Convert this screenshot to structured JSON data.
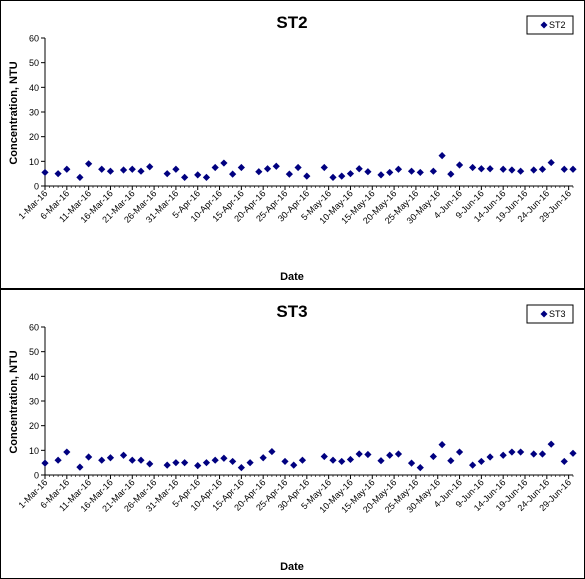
{
  "chart_data": [
    {
      "type": "scatter",
      "title": "ST2",
      "xlabel": "Date",
      "ylabel": "Concentration, NTU",
      "ylim": [
        0,
        60
      ],
      "yticks": [
        "0",
        "10",
        "20",
        "30",
        "40",
        "50",
        "60"
      ],
      "xlim": [
        "2016-03-01",
        "2016-06-30"
      ],
      "xtick_labels": [
        "1-Mar-16",
        "6-Mar-16",
        "11-Mar-16",
        "16-Mar-16",
        "21-Mar-16",
        "26-Mar-16",
        "31-Mar-16",
        "5-Apr-16",
        "10-Apr-16",
        "15-Apr-16",
        "20-Apr-16",
        "25-Apr-16",
        "30-Apr-16",
        "5-May-16",
        "10-May-16",
        "15-May-16",
        "20-May-16",
        "25-May-16",
        "30-May-16",
        "4-Jun-16",
        "9-Jun-16",
        "14-Jun-16",
        "19-Jun-16",
        "24-Jun-16",
        "29-Jun-16"
      ],
      "legend": {
        "position": "top-right",
        "entries": [
          "ST2"
        ]
      },
      "grid": false,
      "series": [
        {
          "name": "ST2",
          "color": "#000080",
          "marker": "diamond",
          "points": [
            {
              "x": "2016-03-01",
              "y": 5.5
            },
            {
              "x": "2016-03-04",
              "y": 5.0
            },
            {
              "x": "2016-03-06",
              "y": 6.8
            },
            {
              "x": "2016-03-09",
              "y": 3.5
            },
            {
              "x": "2016-03-11",
              "y": 9.0
            },
            {
              "x": "2016-03-14",
              "y": 6.8
            },
            {
              "x": "2016-03-16",
              "y": 6.0
            },
            {
              "x": "2016-03-19",
              "y": 6.5
            },
            {
              "x": "2016-03-21",
              "y": 6.8
            },
            {
              "x": "2016-03-23",
              "y": 6.0
            },
            {
              "x": "2016-03-25",
              "y": 7.8
            },
            {
              "x": "2016-03-29",
              "y": 5.0
            },
            {
              "x": "2016-03-31",
              "y": 6.8
            },
            {
              "x": "2016-04-02",
              "y": 3.5
            },
            {
              "x": "2016-04-05",
              "y": 4.5
            },
            {
              "x": "2016-04-07",
              "y": 3.5
            },
            {
              "x": "2016-04-09",
              "y": 7.5
            },
            {
              "x": "2016-04-11",
              "y": 9.3
            },
            {
              "x": "2016-04-13",
              "y": 4.8
            },
            {
              "x": "2016-04-15",
              "y": 7.5
            },
            {
              "x": "2016-04-19",
              "y": 5.8
            },
            {
              "x": "2016-04-21",
              "y": 7.0
            },
            {
              "x": "2016-04-23",
              "y": 8.0
            },
            {
              "x": "2016-04-26",
              "y": 4.8
            },
            {
              "x": "2016-04-28",
              "y": 7.5
            },
            {
              "x": "2016-04-30",
              "y": 4.0
            },
            {
              "x": "2016-05-04",
              "y": 7.5
            },
            {
              "x": "2016-05-06",
              "y": 3.5
            },
            {
              "x": "2016-05-08",
              "y": 4.0
            },
            {
              "x": "2016-05-10",
              "y": 5.0
            },
            {
              "x": "2016-05-12",
              "y": 7.0
            },
            {
              "x": "2016-05-14",
              "y": 5.8
            },
            {
              "x": "2016-05-17",
              "y": 4.5
            },
            {
              "x": "2016-05-19",
              "y": 5.5
            },
            {
              "x": "2016-05-21",
              "y": 6.8
            },
            {
              "x": "2016-05-24",
              "y": 6.0
            },
            {
              "x": "2016-05-26",
              "y": 5.5
            },
            {
              "x": "2016-05-29",
              "y": 6.0
            },
            {
              "x": "2016-05-31",
              "y": 12.3
            },
            {
              "x": "2016-06-02",
              "y": 4.8
            },
            {
              "x": "2016-06-04",
              "y": 8.5
            },
            {
              "x": "2016-06-07",
              "y": 7.5
            },
            {
              "x": "2016-06-09",
              "y": 7.0
            },
            {
              "x": "2016-06-11",
              "y": 7.0
            },
            {
              "x": "2016-06-14",
              "y": 6.8
            },
            {
              "x": "2016-06-16",
              "y": 6.5
            },
            {
              "x": "2016-06-18",
              "y": 6.0
            },
            {
              "x": "2016-06-21",
              "y": 6.5
            },
            {
              "x": "2016-06-23",
              "y": 6.8
            },
            {
              "x": "2016-06-25",
              "y": 9.5
            },
            {
              "x": "2016-06-28",
              "y": 6.8
            },
            {
              "x": "2016-06-30",
              "y": 6.8
            }
          ]
        }
      ]
    },
    {
      "type": "scatter",
      "title": "ST3",
      "xlabel": "Date",
      "ylabel": "Concentration, NTU",
      "ylim": [
        0,
        60
      ],
      "yticks": [
        "0",
        "10",
        "20",
        "30",
        "40",
        "50",
        "60"
      ],
      "xlim": [
        "2016-03-01",
        "2016-06-30"
      ],
      "xtick_labels": [
        "1-Mar-16",
        "6-Mar-16",
        "11-Mar-16",
        "16-Mar-16",
        "21-Mar-16",
        "26-Mar-16",
        "31-Mar-16",
        "5-Apr-16",
        "10-Apr-16",
        "15-Apr-16",
        "20-Apr-16",
        "25-Apr-16",
        "30-Apr-16",
        "5-May-16",
        "10-May-16",
        "15-May-16",
        "20-May-16",
        "25-May-16",
        "30-May-16",
        "4-Jun-16",
        "9-Jun-16",
        "14-Jun-16",
        "19-Jun-16",
        "24-Jun-16",
        "29-Jun-16"
      ],
      "legend": {
        "position": "top-right",
        "entries": [
          "ST3"
        ]
      },
      "grid": false,
      "series": [
        {
          "name": "ST3",
          "color": "#000080",
          "marker": "diamond",
          "points": [
            {
              "x": "2016-03-01",
              "y": 4.8
            },
            {
              "x": "2016-03-04",
              "y": 6.0
            },
            {
              "x": "2016-03-06",
              "y": 9.3
            },
            {
              "x": "2016-03-09",
              "y": 3.2
            },
            {
              "x": "2016-03-11",
              "y": 7.3
            },
            {
              "x": "2016-03-14",
              "y": 6.0
            },
            {
              "x": "2016-03-16",
              "y": 7.0
            },
            {
              "x": "2016-03-19",
              "y": 8.0
            },
            {
              "x": "2016-03-21",
              "y": 6.0
            },
            {
              "x": "2016-03-23",
              "y": 6.0
            },
            {
              "x": "2016-03-25",
              "y": 4.5
            },
            {
              "x": "2016-03-29",
              "y": 4.0
            },
            {
              "x": "2016-03-31",
              "y": 5.0
            },
            {
              "x": "2016-04-02",
              "y": 5.0
            },
            {
              "x": "2016-04-05",
              "y": 3.8
            },
            {
              "x": "2016-04-07",
              "y": 5.0
            },
            {
              "x": "2016-04-09",
              "y": 6.0
            },
            {
              "x": "2016-04-11",
              "y": 6.8
            },
            {
              "x": "2016-04-13",
              "y": 5.5
            },
            {
              "x": "2016-04-15",
              "y": 3.0
            },
            {
              "x": "2016-04-17",
              "y": 5.0
            },
            {
              "x": "2016-04-20",
              "y": 7.0
            },
            {
              "x": "2016-04-22",
              "y": 9.5
            },
            {
              "x": "2016-04-25",
              "y": 5.5
            },
            {
              "x": "2016-04-27",
              "y": 4.0
            },
            {
              "x": "2016-04-29",
              "y": 6.0
            },
            {
              "x": "2016-05-04",
              "y": 7.5
            },
            {
              "x": "2016-05-06",
              "y": 6.0
            },
            {
              "x": "2016-05-08",
              "y": 5.5
            },
            {
              "x": "2016-05-10",
              "y": 6.3
            },
            {
              "x": "2016-05-12",
              "y": 8.5
            },
            {
              "x": "2016-05-14",
              "y": 8.3
            },
            {
              "x": "2016-05-17",
              "y": 5.8
            },
            {
              "x": "2016-05-19",
              "y": 8.0
            },
            {
              "x": "2016-05-21",
              "y": 8.5
            },
            {
              "x": "2016-05-24",
              "y": 4.8
            },
            {
              "x": "2016-05-26",
              "y": 3.0
            },
            {
              "x": "2016-05-29",
              "y": 7.5
            },
            {
              "x": "2016-05-31",
              "y": 12.3
            },
            {
              "x": "2016-06-02",
              "y": 5.8
            },
            {
              "x": "2016-06-04",
              "y": 9.3
            },
            {
              "x": "2016-06-07",
              "y": 4.0
            },
            {
              "x": "2016-06-09",
              "y": 5.5
            },
            {
              "x": "2016-06-11",
              "y": 7.3
            },
            {
              "x": "2016-06-14",
              "y": 8.0
            },
            {
              "x": "2016-06-16",
              "y": 9.3
            },
            {
              "x": "2016-06-18",
              "y": 9.3
            },
            {
              "x": "2016-06-21",
              "y": 8.5
            },
            {
              "x": "2016-06-23",
              "y": 8.5
            },
            {
              "x": "2016-06-25",
              "y": 12.5
            },
            {
              "x": "2016-06-28",
              "y": 5.5
            },
            {
              "x": "2016-06-30",
              "y": 8.8
            }
          ]
        }
      ]
    }
  ]
}
